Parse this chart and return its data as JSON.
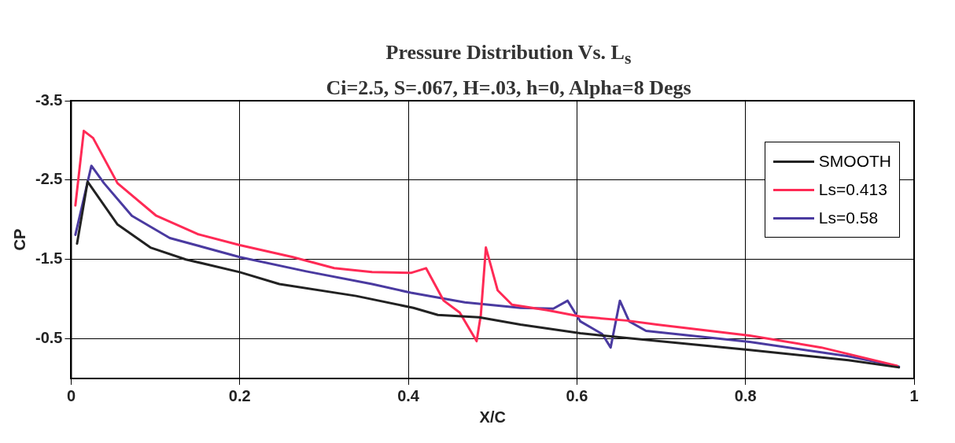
{
  "chart_data": {
    "type": "line",
    "title": "Pressure Distribution Vs. L$_{s}$",
    "subtitle": "Ci=2.5, S=.067, H=.03, h=0, Alpha=8 Degs",
    "xlabel": "X/C",
    "ylabel": "CP",
    "xlim": [
      0,
      1
    ],
    "xticks": [
      0,
      0.2,
      0.4,
      0.6,
      0.8,
      1
    ],
    "ylim": [
      0,
      -3.5
    ],
    "yticks": [
      -3.5,
      -2.5,
      -1.5,
      -0.5
    ],
    "grid": true,
    "legend": "top right",
    "marker": "none",
    "line_style": "solid",
    "series": [
      {
        "name": "SMOOTH",
        "color": "#222222",
        "x": [
          0.007,
          0.0195,
          0.055,
          0.094,
          0.136,
          0.2,
          0.247,
          0.338,
          0.406,
          0.435,
          0.484,
          0.533,
          0.604,
          0.659,
          0.805,
          0.922,
          0.982
        ],
        "values": [
          -1.7,
          -2.48,
          -1.94,
          -1.65,
          -1.5,
          -1.34,
          -1.19,
          -1.04,
          -0.89,
          -0.8,
          -0.77,
          -0.68,
          -0.57,
          -0.51,
          -0.36,
          -0.23,
          -0.14
        ]
      },
      {
        "name": "Ls=0.413",
        "color": "#ff2a55",
        "x": [
          0.005,
          0.015,
          0.026,
          0.055,
          0.101,
          0.15,
          0.2,
          0.263,
          0.312,
          0.357,
          0.403,
          0.421,
          0.442,
          0.461,
          0.481,
          0.486,
          0.492,
          0.506,
          0.523,
          0.565,
          0.604,
          0.659,
          0.695,
          0.805,
          0.89,
          0.98
        ],
        "values": [
          -2.18,
          -3.12,
          -3.03,
          -2.46,
          -2.05,
          -1.82,
          -1.68,
          -1.53,
          -1.39,
          -1.34,
          -1.33,
          -1.39,
          -0.98,
          -0.83,
          -0.47,
          -0.8,
          -1.65,
          -1.11,
          -0.93,
          -0.86,
          -0.78,
          -0.73,
          -0.68,
          -0.54,
          -0.39,
          -0.16
        ]
      },
      {
        "name": "Ls=0.58",
        "color": "#4a3aa0",
        "x": [
          0.005,
          0.024,
          0.039,
          0.072,
          0.117,
          0.2,
          0.279,
          0.357,
          0.403,
          0.467,
          0.533,
          0.572,
          0.589,
          0.604,
          0.63,
          0.64,
          0.651,
          0.662,
          0.682,
          0.805,
          0.922,
          0.982
        ],
        "values": [
          -1.81,
          -2.68,
          -2.46,
          -2.05,
          -1.77,
          -1.53,
          -1.35,
          -1.19,
          -1.08,
          -0.96,
          -0.89,
          -0.88,
          -0.98,
          -0.72,
          -0.56,
          -0.39,
          -0.98,
          -0.72,
          -0.6,
          -0.46,
          -0.28,
          -0.15
        ]
      }
    ]
  }
}
